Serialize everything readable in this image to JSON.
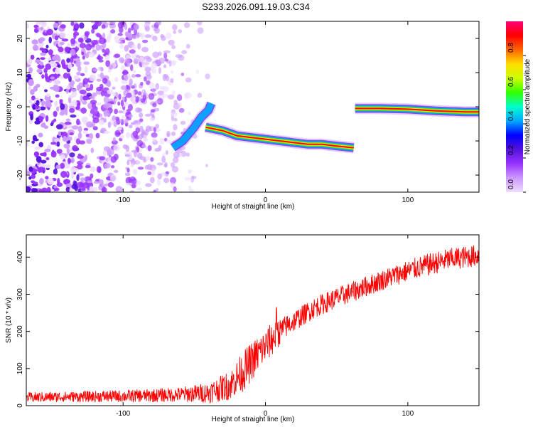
{
  "title": "S233.2026.091.19.03.C34",
  "chart_data": [
    {
      "type": "heatmap",
      "name": "spectrogram",
      "xlabel": "Height of straight line (km)",
      "ylabel": "Frequency (Hz)",
      "xlim": [
        -168,
        150
      ],
      "ylim": [
        -25,
        25
      ],
      "xticks": [
        -100,
        0,
        100
      ],
      "xtick_labels": [
        "-100",
        "0",
        "100"
      ],
      "yticks": [
        -20,
        -10,
        0,
        10,
        20
      ],
      "ytick_labels": [
        "-20",
        "-10",
        "0",
        "10",
        "20"
      ],
      "colorbar": {
        "label": "Normalized spectral amplitude",
        "range": [
          0,
          1
        ],
        "ticks": [
          0,
          0.2,
          0.4,
          0.6,
          0.8
        ],
        "tick_labels": [
          "0.0",
          "0.2",
          "0.4",
          "0.6",
          "0.8"
        ],
        "colors": [
          "#eedcff",
          "#cc99ff",
          "#9933ff",
          "#5511dd",
          "#0000ff",
          "#00aaff",
          "#00ffcc",
          "#33ff00",
          "#ccff00",
          "#ffdd00",
          "#ff6600",
          "#ff0000",
          "#ff0077"
        ]
      },
      "noise_region": {
        "x_range": [
          -168,
          -35
        ],
        "freq_range": [
          -25,
          25
        ],
        "amplitude": 0.15
      },
      "tracks": [
        {
          "x": [
            -65,
            -58,
            -50,
            -45,
            -40,
            -38
          ],
          "freq": [
            -12,
            -10,
            -6,
            -3,
            -1,
            1
          ],
          "amplitude": 0.4
        },
        {
          "x": [
            -42,
            -30,
            -20,
            -10,
            0,
            10,
            20,
            30,
            40,
            50,
            62
          ],
          "freq": [
            -6,
            -7,
            -8.5,
            -9,
            -9.5,
            -10,
            -10.5,
            -11,
            -11,
            -11.5,
            -12
          ],
          "amplitude": 0.9
        },
        {
          "x": [
            63,
            80,
            100,
            120,
            140,
            150
          ],
          "freq": [
            -0.5,
            -0.5,
            -0.7,
            -1.2,
            -1.5,
            -1.5
          ],
          "amplitude": 1.0
        }
      ]
    },
    {
      "type": "line",
      "name": "snr",
      "xlabel": "Height of straight line (km)",
      "ylabel": "SNR (10 * v/v)",
      "xlim": [
        -168,
        150
      ],
      "ylim": [
        0,
        460
      ],
      "xticks": [
        -100,
        0,
        100
      ],
      "xtick_labels": [
        "-100",
        "0",
        "100"
      ],
      "yticks": [
        0,
        100,
        200,
        300,
        400
      ],
      "ytick_labels": [
        "0",
        "100",
        "200",
        "300",
        "400"
      ],
      "series": [
        {
          "name": "SNR",
          "color": "#ff0000",
          "x": [
            -168,
            -140,
            -110,
            -80,
            -60,
            -40,
            -25,
            -15,
            -5,
            5,
            15,
            25,
            35,
            50,
            70,
            90,
            110,
            130,
            150
          ],
          "values": [
            22,
            24,
            25,
            27,
            30,
            35,
            55,
            95,
            140,
            180,
            215,
            240,
            265,
            290,
            320,
            350,
            375,
            395,
            405
          ],
          "noise_amplitude": [
            14,
            14,
            16,
            18,
            20,
            28,
            40,
            55,
            50,
            45,
            30,
            28,
            28,
            28,
            28,
            28,
            30,
            30,
            30
          ]
        }
      ]
    }
  ]
}
